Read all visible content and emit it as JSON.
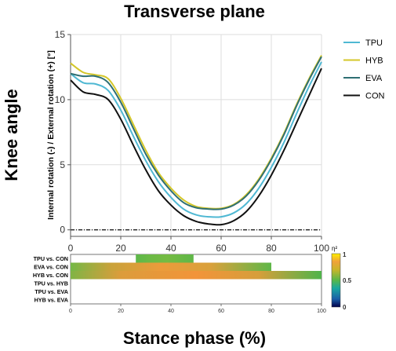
{
  "chart_data": [
    {
      "type": "line",
      "title": "Transverse plane",
      "figure_ylabel": "Knee angle",
      "xlabel": "Stance phase (%)",
      "ylabel": "Internal rotation (-) / External rotation (+) [°]",
      "xlim": [
        0,
        100
      ],
      "ylim": [
        -0.5,
        15
      ],
      "xticks": [
        0,
        20,
        40,
        60,
        80,
        100
      ],
      "yticks": [
        0,
        5,
        10,
        15
      ],
      "grid": true,
      "legend_position": "right",
      "x": [
        0,
        5,
        10,
        15,
        20,
        25,
        30,
        35,
        40,
        45,
        50,
        55,
        60,
        65,
        70,
        75,
        80,
        85,
        90,
        95,
        100
      ],
      "series": [
        {
          "name": "TPU",
          "color": "#4fb8d3",
          "values": [
            12.0,
            11.3,
            11.2,
            10.7,
            9.2,
            7.2,
            5.3,
            3.7,
            2.5,
            1.6,
            1.15,
            1.0,
            1.0,
            1.3,
            2.0,
            3.2,
            4.8,
            6.7,
            8.9,
            11.0,
            12.9
          ]
        },
        {
          "name": "HYB",
          "color": "#d4c72a",
          "values": [
            12.8,
            12.1,
            11.9,
            11.6,
            10.1,
            8.1,
            6.1,
            4.4,
            3.2,
            2.3,
            1.8,
            1.65,
            1.65,
            1.95,
            2.7,
            3.9,
            5.5,
            7.4,
            9.6,
            11.6,
            13.4
          ]
        },
        {
          "name": "EVA",
          "color": "#2e6f73",
          "values": [
            12.0,
            11.8,
            11.8,
            11.3,
            9.8,
            7.8,
            5.8,
            4.2,
            3.0,
            2.1,
            1.7,
            1.6,
            1.6,
            1.9,
            2.6,
            3.8,
            5.4,
            7.3,
            9.5,
            11.5,
            13.3
          ]
        },
        {
          "name": "CON",
          "color": "#111111",
          "values": [
            11.5,
            10.6,
            10.4,
            10.0,
            8.5,
            6.5,
            4.6,
            3.0,
            1.9,
            1.1,
            0.65,
            0.45,
            0.4,
            0.7,
            1.4,
            2.6,
            4.2,
            6.1,
            8.2,
            10.3,
            12.4
          ]
        }
      ]
    },
    {
      "type": "heatmap",
      "rows": [
        "TPU vs. CON",
        "EVA vs. CON",
        "HYB vs. CON",
        "TPU vs. HYB",
        "TPU vs. EVA",
        "HYB vs. EVA"
      ],
      "xlim": [
        0,
        100
      ],
      "xticks": [
        0,
        20,
        40,
        60,
        80,
        100
      ],
      "colorbar_label": "η²",
      "colorbar_range": [
        0,
        1
      ],
      "colorbar_ticks": [
        "0",
        "0.5",
        "1"
      ],
      "significant_ranges": [
        [
          [
            26,
            49
          ]
        ],
        [
          [
            0,
            80
          ]
        ],
        [
          [
            0,
            100
          ]
        ],
        [],
        [],
        []
      ]
    }
  ]
}
